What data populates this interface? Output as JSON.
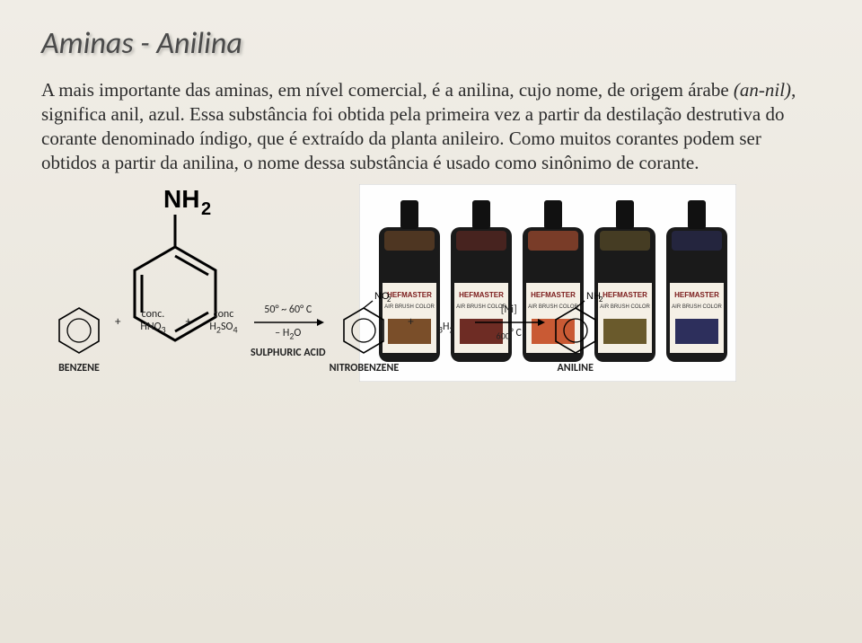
{
  "title": "Aminas - Anilina",
  "body_pre": "A mais importante das aminas, em nível comercial, é a anilina, cujo nome, de origem árabe ",
  "body_italic": "(an-nil)",
  "body_post": ", significa anil, azul. Essa substância foi obtida pela primeira vez a partir da destilação destrutiva do corante denominado índigo, que é extraído da planta anileiro. Como muitos corantes podem ser obtidos a partir da anilina, o nome dessa substância é usado como sinônimo de corante.",
  "molecule_label": "NH",
  "molecule_sub": "2",
  "bottles": {
    "count": 5,
    "label_brand": "HEFMASTER",
    "colors": [
      "#7a4e29",
      "#6e2c24",
      "#c95a34",
      "#6a5a2c",
      "#2d2f5c"
    ]
  },
  "reaction": {
    "steps": [
      {
        "type": "hex",
        "caption": "BENZENE",
        "sub": ""
      },
      {
        "type": "plus",
        "text": "+"
      },
      {
        "type": "reagent",
        "top": "conc.",
        "bot": "HNO3",
        "subpos": 3
      },
      {
        "type": "plus",
        "text": "+"
      },
      {
        "type": "reagent",
        "top": "conc",
        "bot": "H2SO4",
        "subpos": 1
      },
      {
        "type": "cond",
        "caption": "SULPHURIC ACID",
        "top": "50° ~ 60° C",
        "bot": "– H2O"
      },
      {
        "type": "hex",
        "caption": "NITROBENZENE",
        "sub": "NO2"
      },
      {
        "type": "plus",
        "text": "+"
      },
      {
        "type": "reagent",
        "top": "",
        "bot": "3H2",
        "subpos": 2
      },
      {
        "type": "cond",
        "caption": "",
        "top": "[Ni]",
        "bot": "600° C"
      },
      {
        "type": "hex",
        "caption": "ANILINE",
        "sub": "NH2"
      }
    ]
  }
}
